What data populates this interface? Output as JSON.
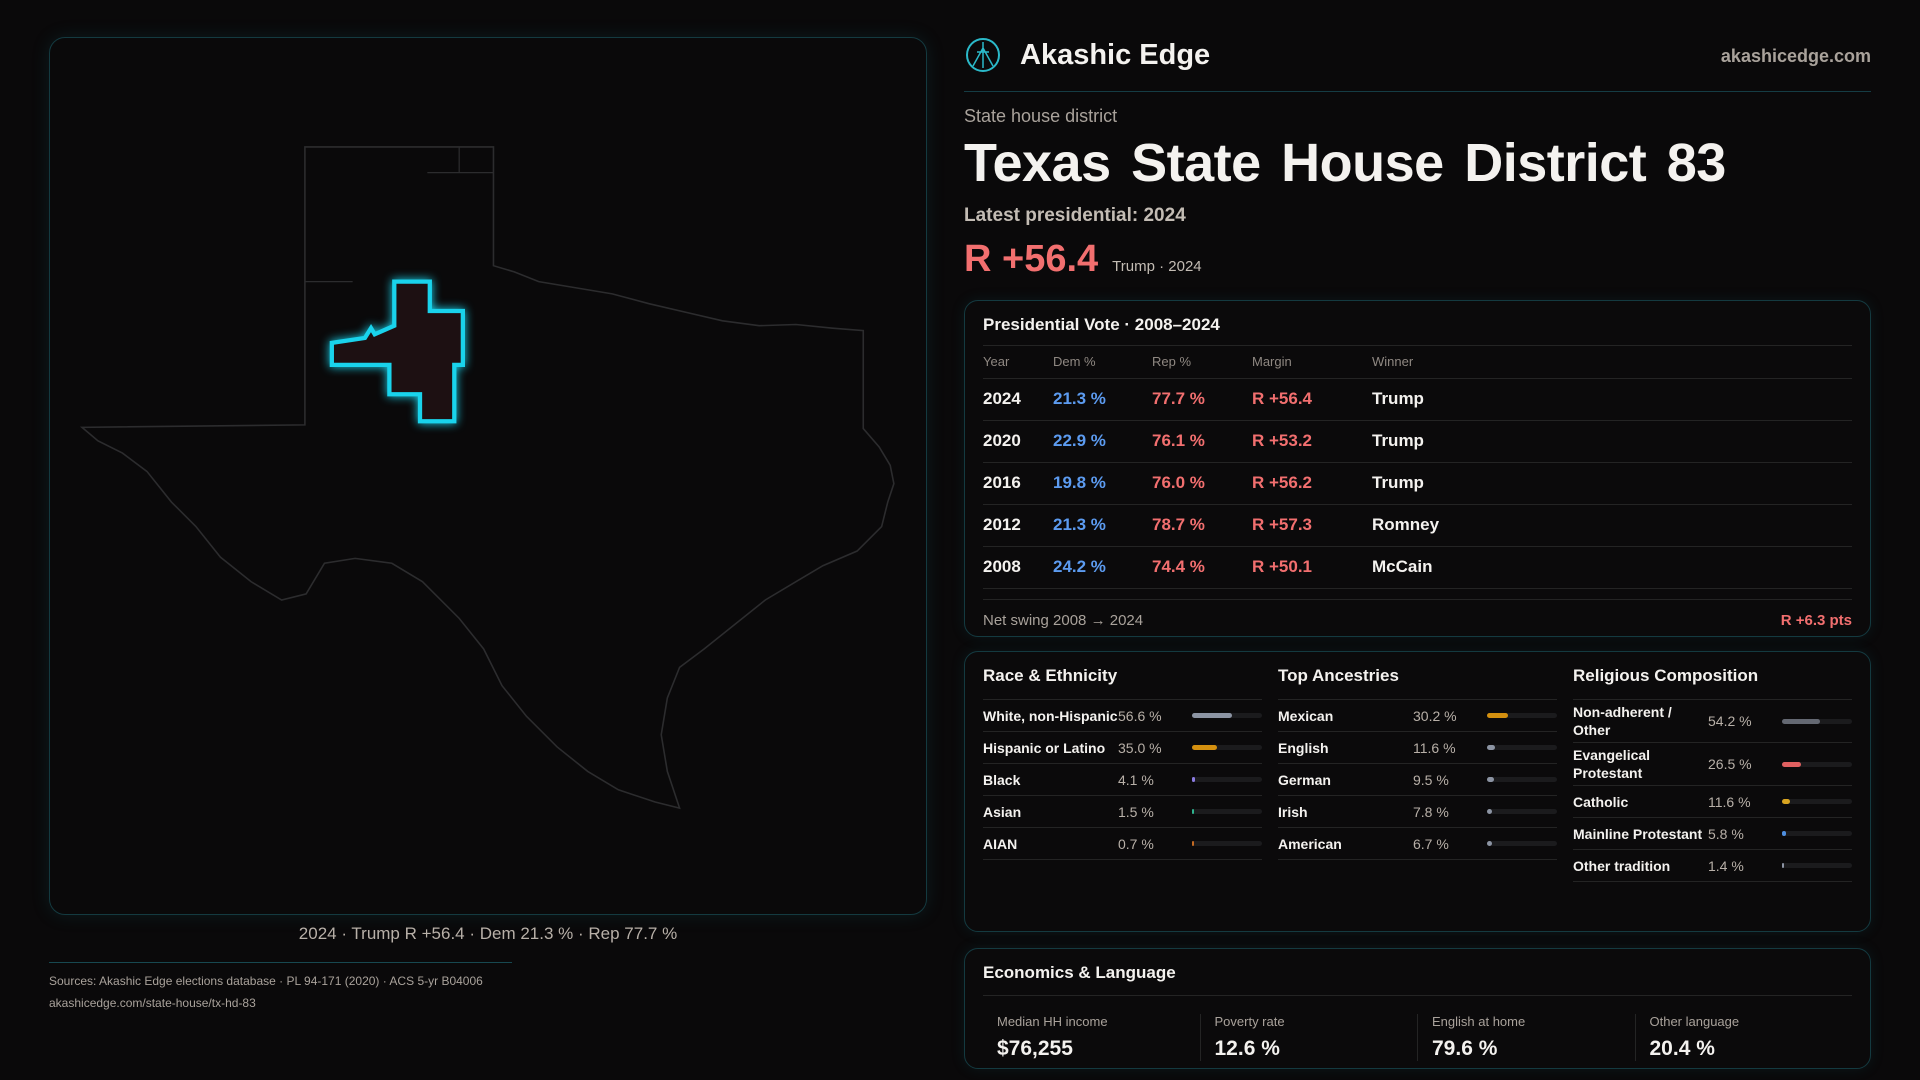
{
  "brand": {
    "name": "Akashic Edge",
    "site": "akashicedge.com",
    "logo_icon": "compass-star-icon"
  },
  "kicker": "State house district",
  "title": {
    "state": "Texas",
    "district": "State House District 83"
  },
  "latest": "Latest presidential: 2024",
  "margin": {
    "value": "R +56.4",
    "sub": "Trump · 2024"
  },
  "map": {
    "caption": "2024 · Trump R +56.4 · Dem 21.3 % · Rep 77.7 %",
    "district_color": "#19d3ec"
  },
  "presidential": {
    "title": "Presidential Vote · 2008–2024",
    "headers": [
      "Year",
      "Dem %",
      "Rep %",
      "Margin",
      "Winner"
    ],
    "rows": [
      [
        "2024",
        "21.3 %",
        "77.7 %",
        "R +56.4",
        "Trump"
      ],
      [
        "2020",
        "22.9 %",
        "76.1 %",
        "R +53.2",
        "Trump"
      ],
      [
        "2016",
        "19.8 %",
        "76.0 %",
        "R +56.2",
        "Trump"
      ],
      [
        "2012",
        "21.3 %",
        "78.7 %",
        "R +57.3",
        "Romney"
      ],
      [
        "2008",
        "24.2 %",
        "74.4 %",
        "R +50.1",
        "McCain"
      ]
    ],
    "swing_label": "Net swing 2008 → 2024",
    "swing_value": "R +6.3 pts"
  },
  "demographics": [
    {
      "title": "Race & Ethnicity",
      "items": [
        {
          "label": "White, non-Hispanic",
          "value": "56.6 %",
          "pct": 56.6,
          "color": "#8c94a3"
        },
        {
          "label": "Hispanic or Latino",
          "value": "35.0 %",
          "pct": 35.0,
          "color": "#d4900f"
        },
        {
          "label": "Black",
          "value": "4.1 %",
          "pct": 4.1,
          "color": "#8b7be0"
        },
        {
          "label": "Asian",
          "value": "1.5 %",
          "pct": 1.5,
          "color": "#2fb38e"
        },
        {
          "label": "AIAN",
          "value": "0.7 %",
          "pct": 0.7,
          "color": "#c46a22"
        }
      ]
    },
    {
      "title": "Top Ancestries",
      "items": [
        {
          "label": "Mexican",
          "value": "30.2 %",
          "pct": 30.2,
          "color": "#d4900f"
        },
        {
          "label": "English",
          "value": "11.6 %",
          "pct": 11.6,
          "color": "#8c94a3"
        },
        {
          "label": "German",
          "value": "9.5 %",
          "pct": 9.5,
          "color": "#8c94a3"
        },
        {
          "label": "Irish",
          "value": "7.8 %",
          "pct": 7.8,
          "color": "#8c94a3"
        },
        {
          "label": "American",
          "value": "6.7 %",
          "pct": 6.7,
          "color": "#8c94a3"
        }
      ]
    },
    {
      "title": "Religious Composition",
      "items": [
        {
          "label": "Non-adherent / Other",
          "value": "54.2 %",
          "pct": 54.2,
          "color": "#646872"
        },
        {
          "label": "Evangelical Protestant",
          "value": "26.5 %",
          "pct": 26.5,
          "color": "#e06060"
        },
        {
          "label": "Catholic",
          "value": "11.6 %",
          "pct": 11.6,
          "color": "#d9a420"
        },
        {
          "label": "Mainline Protestant",
          "value": "5.8 %",
          "pct": 5.8,
          "color": "#4f8fe0"
        },
        {
          "label": "Other tradition",
          "value": "1.4 %",
          "pct": 1.4,
          "color": "#8c94a3"
        }
      ]
    }
  ],
  "economics": {
    "title": "Economics & Language",
    "cells": [
      {
        "label": "Median HH income",
        "value": "$76,255"
      },
      {
        "label": "Poverty rate",
        "value": "12.6 %"
      },
      {
        "label": "English at home",
        "value": "79.6 %"
      },
      {
        "label": "Other language",
        "value": "20.4 %"
      }
    ]
  },
  "footer": {
    "sources": "Sources: Akashic Edge elections database · PL 94-171 (2020) · ACS 5-yr B04006",
    "url": "akashicedge.com/state-house/tx-hd-83"
  }
}
